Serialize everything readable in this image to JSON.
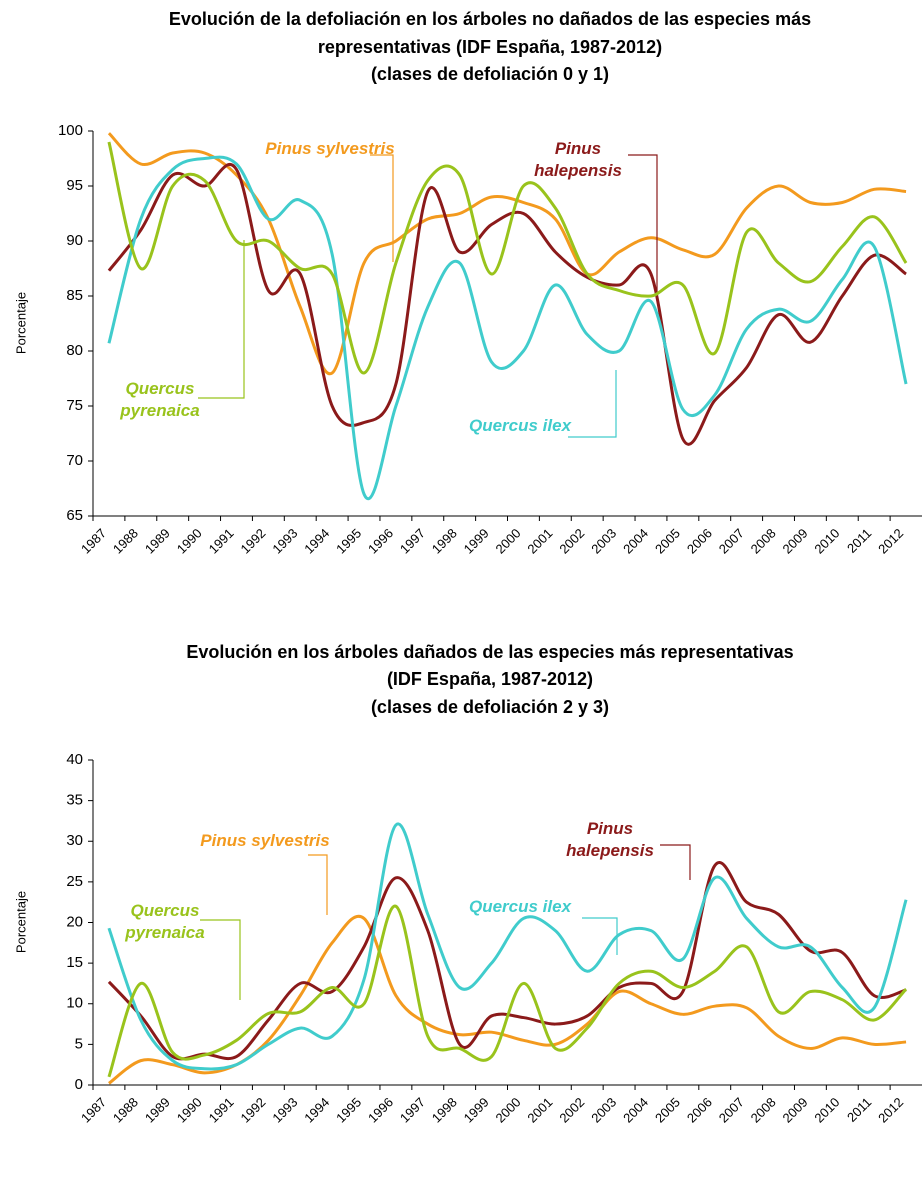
{
  "chart_data": [
    {
      "type": "line",
      "title_lines": [
        "Evolución de la defoliación en los árboles no dañados de las especies más",
        "representativas (IDF España, 1987-2012)",
        "(clases de defoliación 0 y 1)"
      ],
      "y_label": "Porcentaje",
      "categories": [
        "1987",
        "1988",
        "1989",
        "1990",
        "1991",
        "1992",
        "1993",
        "1994",
        "1995",
        "1996",
        "1997",
        "1998",
        "1999",
        "2000",
        "2001",
        "2002",
        "2003",
        "2004",
        "2005",
        "2006",
        "2007",
        "2008",
        "2009",
        "2010",
        "2011",
        "2012"
      ],
      "ylim": [
        65,
        100
      ],
      "yticks": [
        65,
        70,
        75,
        80,
        85,
        90,
        95,
        100
      ],
      "grid": false,
      "series": [
        {
          "name": "Pinus sylvestris",
          "color": "#f39a1e",
          "values": [
            99.8,
            97,
            98,
            98,
            96,
            92,
            84,
            78,
            88,
            90,
            92,
            92.5,
            94,
            93.5,
            92,
            87,
            89,
            90.3,
            89.2,
            88.8,
            93,
            95,
            93.5,
            93.5,
            94.7,
            94.5
          ]
        },
        {
          "name": "Pinus halepensis",
          "color": "#8b1a1a",
          "values": [
            87.3,
            91,
            96,
            95,
            96.5,
            85.5,
            87,
            75,
            73.5,
            77,
            94.5,
            89,
            91.5,
            92.5,
            89,
            86.7,
            86,
            87,
            72,
            75.5,
            78.5,
            83.3,
            80.8,
            85,
            88.7,
            87
          ]
        },
        {
          "name": "Quercus ilex",
          "color": "#40cccc",
          "values": [
            80.7,
            92,
            96.5,
            97.5,
            97,
            92,
            93.7,
            88.8,
            67,
            75,
            84,
            88,
            79,
            80,
            86,
            81.5,
            80,
            84.5,
            74.7,
            76,
            82,
            83.8,
            82.7,
            86.5,
            89.5,
            77
          ]
        },
        {
          "name": "Quercus pyrenaica",
          "color": "#99c31c",
          "values": [
            99,
            87.5,
            95,
            95.5,
            90,
            90,
            87.5,
            87,
            78,
            88,
            95.5,
            96,
            87,
            95,
            93,
            87,
            85.5,
            85,
            86,
            79.8,
            90.8,
            88,
            86.3,
            89.5,
            92.2,
            88
          ]
        }
      ]
    },
    {
      "type": "line",
      "title_lines": [
        "Evolución en los árboles dañados de las especies más representativas",
        "(IDF España, 1987-2012)",
        "(clases de defoliación 2 y 3)"
      ],
      "y_label": "Porcentaje",
      "categories": [
        "1987",
        "1988",
        "1989",
        "1990",
        "1991",
        "1992",
        "1993",
        "1994",
        "1995",
        "1996",
        "1997",
        "1998",
        "1999",
        "2000",
        "2001",
        "2002",
        "2003",
        "2004",
        "2005",
        "2006",
        "2007",
        "2008",
        "2009",
        "2010",
        "2011",
        "2012"
      ],
      "ylim": [
        0,
        40
      ],
      "yticks": [
        0,
        5,
        10,
        15,
        20,
        25,
        30,
        35,
        40
      ],
      "grid": false,
      "series": [
        {
          "name": "Pinus sylvestris",
          "color": "#f39a1e",
          "values": [
            0.2,
            3,
            2.5,
            1.5,
            2.5,
            5.5,
            11,
            17.5,
            20.5,
            11,
            7.5,
            6.2,
            6.5,
            5.5,
            5,
            7.5,
            11.5,
            10,
            8.7,
            9.7,
            9.5,
            6,
            4.5,
            5.8,
            5,
            5.3
          ]
        },
        {
          "name": "Pinus halepensis",
          "color": "#8b1a1a",
          "values": [
            12.7,
            8.5,
            3.5,
            3.8,
            3.5,
            8,
            12.5,
            11.5,
            17,
            25.5,
            19,
            5,
            8.5,
            8.3,
            7.5,
            8.5,
            12,
            12.5,
            11.5,
            27,
            22.5,
            21,
            16.5,
            16.3,
            11,
            11.7
          ]
        },
        {
          "name": "Quercus ilex",
          "color": "#40cccc",
          "values": [
            19.3,
            8,
            3,
            2,
            2.5,
            5,
            7,
            6,
            13,
            32,
            21,
            12,
            15,
            20.5,
            19,
            14,
            18.5,
            19,
            15.5,
            25.5,
            20.5,
            17,
            17,
            12,
            9.5,
            22.8
          ]
        },
        {
          "name": "Quercus pyrenaica",
          "color": "#99c31c",
          "values": [
            1,
            12.5,
            4,
            3.7,
            5.5,
            8.8,
            9,
            12,
            10,
            22,
            6,
            4.5,
            3.5,
            12.5,
            4.5,
            7,
            12.5,
            14,
            12,
            14,
            17,
            9,
            11.5,
            10.5,
            8,
            11.8
          ]
        }
      ]
    }
  ]
}
